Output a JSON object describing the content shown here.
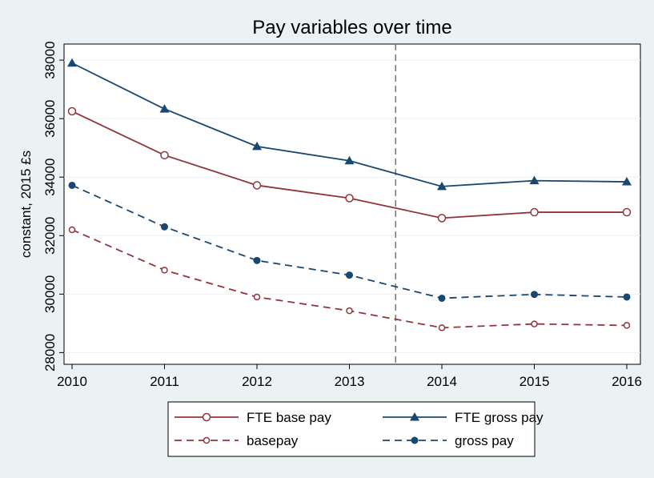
{
  "chart_data": {
    "type": "line",
    "title": "Pay variables over time",
    "y_label": "constant, 2015 £s",
    "x": [
      2010,
      2011,
      2012,
      2013,
      2014,
      2015,
      2016
    ],
    "xlim": [
      2010,
      2016
    ],
    "xticks": [
      2010,
      2011,
      2012,
      2013,
      2014,
      2015,
      2016
    ],
    "ylim": [
      27600,
      38550
    ],
    "yticks": [
      28000,
      30000,
      32000,
      34000,
      36000,
      38000
    ],
    "grid": true,
    "xline": 2013.5,
    "series": [
      {
        "name": "FTE base pay",
        "color": "#90353b",
        "marker": "hollow-circle",
        "dash": false,
        "values": [
          36250,
          34750,
          33720,
          33280,
          32600,
          32800,
          32800
        ]
      },
      {
        "name": "basepay",
        "color": "#90353b",
        "marker": "small-hollow-circle",
        "dash": true,
        "values": [
          32200,
          30820,
          29900,
          29430,
          28850,
          28980,
          28930
        ]
      },
      {
        "name": "FTE gross pay",
        "color": "#1a476f",
        "marker": "triangle",
        "dash": false,
        "values": [
          37900,
          36330,
          35050,
          34560,
          33680,
          33880,
          33840
        ]
      },
      {
        "name": "gross pay",
        "color": "#1a476f",
        "marker": "filled-circle",
        "dash": true,
        "values": [
          33720,
          32300,
          31150,
          30650,
          29860,
          29990,
          29900
        ]
      }
    ]
  }
}
